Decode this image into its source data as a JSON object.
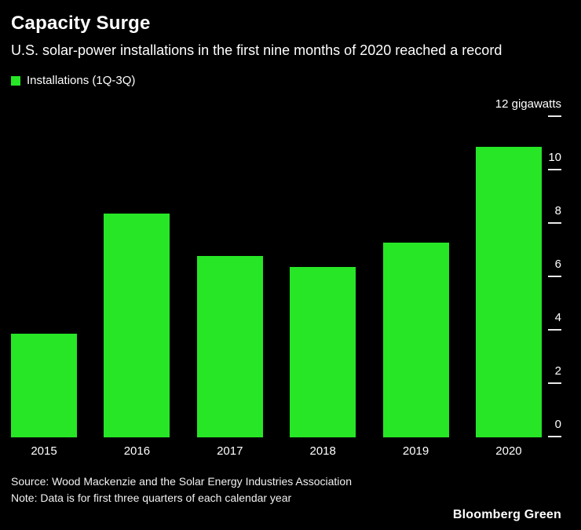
{
  "header": {
    "title": "Capacity Surge",
    "subtitle": "U.S. solar-power installations in the first nine months of 2020 reached a record"
  },
  "legend": {
    "label": "Installations (1Q-3Q)"
  },
  "chart_data": {
    "type": "bar",
    "title": "Capacity Surge",
    "categories": [
      "2015",
      "2016",
      "2017",
      "2018",
      "2019",
      "2020"
    ],
    "values": [
      3.9,
      8.4,
      6.8,
      6.4,
      7.3,
      10.9
    ],
    "xlabel": "",
    "ylabel": "gigawatts",
    "ylim": [
      0,
      12
    ],
    "grid": false,
    "legend_entries": [
      "Installations (1Q-3Q)"
    ],
    "legend_position": "top-left",
    "bar_color": "#26e626",
    "ticks": [
      {
        "value": 12,
        "label": "12 gigawatts"
      },
      {
        "value": 10,
        "label": "10"
      },
      {
        "value": 8,
        "label": "8"
      },
      {
        "value": 6,
        "label": "6"
      },
      {
        "value": 4,
        "label": "4"
      },
      {
        "value": 2,
        "label": "2"
      },
      {
        "value": 0,
        "label": "0"
      }
    ]
  },
  "footer": {
    "source": "Source: Wood Mackenzie and the Solar Energy Industries Association",
    "note": "Note: Data is for first three quarters of each calendar year",
    "brand": "Bloomberg Green"
  },
  "colors": {
    "background": "#000000",
    "bar": "#26e626",
    "text": "#ffffff"
  }
}
